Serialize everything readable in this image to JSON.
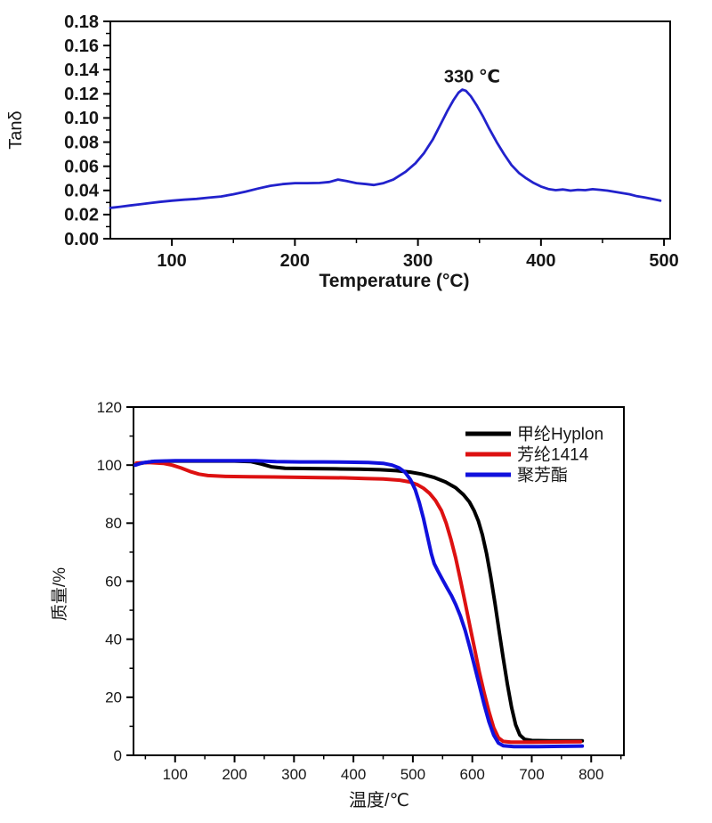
{
  "figure": {
    "background": "#ffffff",
    "description_top": "DMA tan delta curve with peak annotation",
    "description_bottom": "TGA mass-loss curves of three fibers"
  },
  "chart_data": [
    {
      "id": "tan-delta-chart",
      "type": "line",
      "title": "",
      "xlabel": "Temperature (°C)",
      "ylabel": "Tanδ",
      "xlim": [
        50,
        505
      ],
      "ylim": [
        0,
        0.18
      ],
      "grid": false,
      "frame": true,
      "x_ticks": [
        100,
        200,
        300,
        400,
        500
      ],
      "x_tick_labels": [
        "100",
        "200",
        "300",
        "400",
        "500"
      ],
      "x_minor_ticks": [
        150,
        250,
        350,
        450
      ],
      "y_ticks": [
        0,
        0.02,
        0.04,
        0.06,
        0.08,
        0.1,
        0.12,
        0.14,
        0.16,
        0.18
      ],
      "y_tick_labels": [
        "0.00",
        "0.02",
        "0.04",
        "0.06",
        "0.08",
        "0.10",
        "0.12",
        "0.14",
        "0.16",
        "0.18"
      ],
      "y_minor_ticks": [
        0.01,
        0.03,
        0.05,
        0.07,
        0.09,
        0.11,
        0.13,
        0.15,
        0.17
      ],
      "annotations": [
        {
          "text": "330 ℃",
          "x": 344,
          "y": 0.1295
        }
      ],
      "legend": null,
      "series": [
        {
          "name": "tan-delta",
          "color": "#2222cc",
          "width": 2.8,
          "points": [
            [
              50,
              0.0255
            ],
            [
              58,
              0.0265
            ],
            [
              66,
              0.0275
            ],
            [
              74,
              0.0285
            ],
            [
              82,
              0.0295
            ],
            [
              90,
              0.0305
            ],
            [
              100,
              0.0315
            ],
            [
              110,
              0.0323
            ],
            [
              120,
              0.033
            ],
            [
              130,
              0.034
            ],
            [
              140,
              0.035
            ],
            [
              150,
              0.0368
            ],
            [
              160,
              0.039
            ],
            [
              170,
              0.0415
            ],
            [
              180,
              0.0438
            ],
            [
              190,
              0.0452
            ],
            [
              200,
              0.046
            ],
            [
              210,
              0.046
            ],
            [
              220,
              0.0462
            ],
            [
              228,
              0.047
            ],
            [
              235,
              0.049
            ],
            [
              242,
              0.0478
            ],
            [
              250,
              0.046
            ],
            [
              258,
              0.0452
            ],
            [
              264,
              0.0445
            ],
            [
              272,
              0.046
            ],
            [
              280,
              0.049
            ],
            [
              290,
              0.0555
            ],
            [
              298,
              0.0625
            ],
            [
              305,
              0.071
            ],
            [
              312,
              0.082
            ],
            [
              318,
              0.094
            ],
            [
              324,
              0.106
            ],
            [
              329,
              0.115
            ],
            [
              333,
              0.121
            ],
            [
              336,
              0.1235
            ],
            [
              339,
              0.1225
            ],
            [
              343,
              0.118
            ],
            [
              348,
              0.11
            ],
            [
              353,
              0.101
            ],
            [
              358,
              0.091
            ],
            [
              364,
              0.08
            ],
            [
              370,
              0.07
            ],
            [
              376,
              0.061
            ],
            [
              382,
              0.0545
            ],
            [
              388,
              0.05
            ],
            [
              394,
              0.0462
            ],
            [
              400,
              0.0432
            ],
            [
              406,
              0.0412
            ],
            [
              412,
              0.0402
            ],
            [
              418,
              0.0408
            ],
            [
              424,
              0.0398
            ],
            [
              430,
              0.0405
            ],
            [
              436,
              0.0402
            ],
            [
              442,
              0.041
            ],
            [
              448,
              0.0405
            ],
            [
              454,
              0.0398
            ],
            [
              460,
              0.0388
            ],
            [
              466,
              0.0378
            ],
            [
              472,
              0.0368
            ],
            [
              478,
              0.0352
            ],
            [
              484,
              0.0342
            ],
            [
              490,
              0.033
            ],
            [
              497,
              0.0315
            ]
          ]
        }
      ]
    },
    {
      "id": "tga-chart",
      "type": "line",
      "title": "",
      "xlabel": "温度/℃",
      "ylabel": "质量/%",
      "xlim": [
        30,
        855
      ],
      "ylim": [
        0,
        120
      ],
      "grid": false,
      "frame": true,
      "x_ticks": [
        100,
        200,
        300,
        400,
        500,
        600,
        700,
        800
      ],
      "x_tick_labels": [
        "100",
        "200",
        "300",
        "400",
        "500",
        "600",
        "700",
        "800"
      ],
      "x_minor_ticks": [
        50,
        150,
        250,
        350,
        450,
        550,
        650,
        750,
        850
      ],
      "y_ticks": [
        0,
        20,
        40,
        60,
        80,
        100,
        120
      ],
      "y_tick_labels": [
        "0",
        "20",
        "40",
        "60",
        "80",
        "100",
        "120"
      ],
      "y_minor_ticks": [
        10,
        30,
        50,
        70,
        90,
        110
      ],
      "annotations": [],
      "legend": {
        "show": true,
        "position": "upper-right"
      },
      "series": [
        {
          "name": "甲纶Hyplon",
          "color": "#000000",
          "width": 4,
          "points": [
            [
              35,
              100.4
            ],
            [
              60,
              101.2
            ],
            [
              100,
              101.4
            ],
            [
              150,
              101.4
            ],
            [
              200,
              101.4
            ],
            [
              228,
              101.2
            ],
            [
              245,
              100.4
            ],
            [
              262,
              99.4
            ],
            [
              285,
              98.9
            ],
            [
              330,
              98.8
            ],
            [
              370,
              98.7
            ],
            [
              410,
              98.6
            ],
            [
              445,
              98.4
            ],
            [
              472,
              98.1
            ],
            [
              495,
              97.6
            ],
            [
              515,
              96.9
            ],
            [
              535,
              95.8
            ],
            [
              555,
              94.2
            ],
            [
              572,
              92.2
            ],
            [
              585,
              89.8
            ],
            [
              595,
              87.3
            ],
            [
              603,
              84.3
            ],
            [
              610,
              80.8
            ],
            [
              617,
              76.0
            ],
            [
              624,
              69.5
            ],
            [
              631,
              61.5
            ],
            [
              638,
              52.5
            ],
            [
              645,
              43.0
            ],
            [
              652,
              33.5
            ],
            [
              659,
              24.5
            ],
            [
              666,
              16.5
            ],
            [
              673,
              10.5
            ],
            [
              680,
              7.0
            ],
            [
              688,
              5.5
            ],
            [
              700,
              5.1
            ],
            [
              730,
              5.0
            ],
            [
              760,
              5.0
            ],
            [
              785,
              5.0
            ]
          ]
        },
        {
          "name": "芳纶1414",
          "color": "#dd1111",
          "width": 4,
          "points": [
            [
              35,
              100.7
            ],
            [
              55,
              100.9
            ],
            [
              80,
              100.6
            ],
            [
              95,
              100.0
            ],
            [
              110,
              99.0
            ],
            [
              125,
              97.8
            ],
            [
              140,
              96.9
            ],
            [
              155,
              96.4
            ],
            [
              185,
              96.1
            ],
            [
              225,
              96.0
            ],
            [
              265,
              95.9
            ],
            [
              305,
              95.8
            ],
            [
              345,
              95.7
            ],
            [
              385,
              95.6
            ],
            [
              420,
              95.4
            ],
            [
              450,
              95.2
            ],
            [
              478,
              94.8
            ],
            [
              495,
              94.2
            ],
            [
              508,
              93.2
            ],
            [
              518,
              92.0
            ],
            [
              528,
              90.3
            ],
            [
              538,
              87.8
            ],
            [
              548,
              84.3
            ],
            [
              556,
              80.0
            ],
            [
              564,
              74.5
            ],
            [
              572,
              68.0
            ],
            [
              580,
              60.5
            ],
            [
              588,
              52.5
            ],
            [
              596,
              44.5
            ],
            [
              604,
              36.5
            ],
            [
              612,
              28.5
            ],
            [
              620,
              21.5
            ],
            [
              628,
              15.0
            ],
            [
              636,
              9.5
            ],
            [
              644,
              6.0
            ],
            [
              652,
              4.8
            ],
            [
              665,
              4.5
            ],
            [
              700,
              4.5
            ],
            [
              740,
              4.6
            ],
            [
              782,
              4.7
            ]
          ]
        },
        {
          "name": "聚芳酯",
          "color": "#1111dd",
          "width": 4,
          "points": [
            [
              33,
              100.0
            ],
            [
              45,
              100.8
            ],
            [
              65,
              101.3
            ],
            [
              100,
              101.5
            ],
            [
              150,
              101.5
            ],
            [
              200,
              101.5
            ],
            [
              235,
              101.5
            ],
            [
              270,
              101.2
            ],
            [
              310,
              101.1
            ],
            [
              350,
              101.1
            ],
            [
              390,
              101.0
            ],
            [
              425,
              100.9
            ],
            [
              450,
              100.6
            ],
            [
              465,
              100.0
            ],
            [
              477,
              99.0
            ],
            [
              487,
              97.5
            ],
            [
              496,
              95.0
            ],
            [
              504,
              91.5
            ],
            [
              511,
              87.0
            ],
            [
              518,
              81.5
            ],
            [
              525,
              75.0
            ],
            [
              531,
              69.5
            ],
            [
              536,
              66.0
            ],
            [
              542,
              63.5
            ],
            [
              550,
              60.5
            ],
            [
              558,
              57.5
            ],
            [
              565,
              55.0
            ],
            [
              572,
              52.0
            ],
            [
              580,
              48.0
            ],
            [
              588,
              43.0
            ],
            [
              596,
              37.0
            ],
            [
              604,
              30.5
            ],
            [
              612,
              24.0
            ],
            [
              620,
              17.5
            ],
            [
              628,
              11.5
            ],
            [
              636,
              7.0
            ],
            [
              644,
              4.2
            ],
            [
              652,
              3.3
            ],
            [
              670,
              3.0
            ],
            [
              710,
              3.0
            ],
            [
              750,
              3.1
            ],
            [
              785,
              3.2
            ]
          ]
        }
      ]
    }
  ]
}
